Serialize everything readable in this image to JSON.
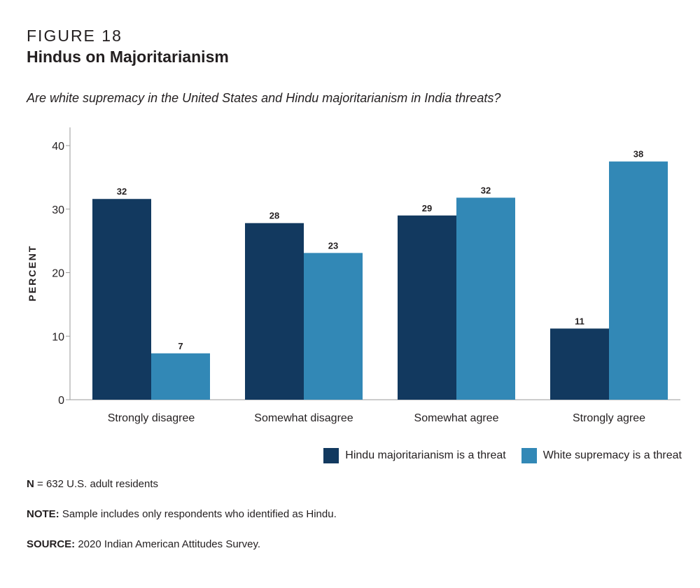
{
  "figure_label": "FIGURE 18",
  "title": "Hindus on Majoritarianism",
  "subtitle": "Are white supremacy in the United States and Hindu majoritarianism in India threats?",
  "footnotes": {
    "n_label": "N",
    "n_text": " = 632 U.S. adult residents",
    "note_label": "NOTE:",
    "note_text": " Sample includes only respondents who identified as Hindu.",
    "source_label": "SOURCE:",
    "source_text": " 2020 Indian American Attitudes Survey."
  },
  "colors": {
    "hindu": "#12395f",
    "white": "#3288b6",
    "axis": "#9a9a9a"
  },
  "chart_data": {
    "type": "bar",
    "ylabel": "PERCENT",
    "xlabel": "",
    "ylim": [
      0,
      40
    ],
    "yticks": [
      0,
      10,
      20,
      30,
      40
    ],
    "categories": [
      "Strongly disagree",
      "Somewhat disagree",
      "Somewhat agree",
      "Strongly agree"
    ],
    "series": [
      {
        "name": "Hindu majoritarianism is a threat",
        "values": [
          32,
          28,
          29,
          11
        ]
      },
      {
        "name": "White supremacy is a threat",
        "values": [
          7,
          23,
          32,
          38
        ]
      }
    ],
    "exact_heights": {
      "hindu": [
        31.6,
        27.8,
        29.0,
        11.2
      ],
      "white": [
        7.3,
        23.1,
        31.8,
        37.5
      ]
    },
    "legend_position": "bottom-right",
    "grid": false
  }
}
